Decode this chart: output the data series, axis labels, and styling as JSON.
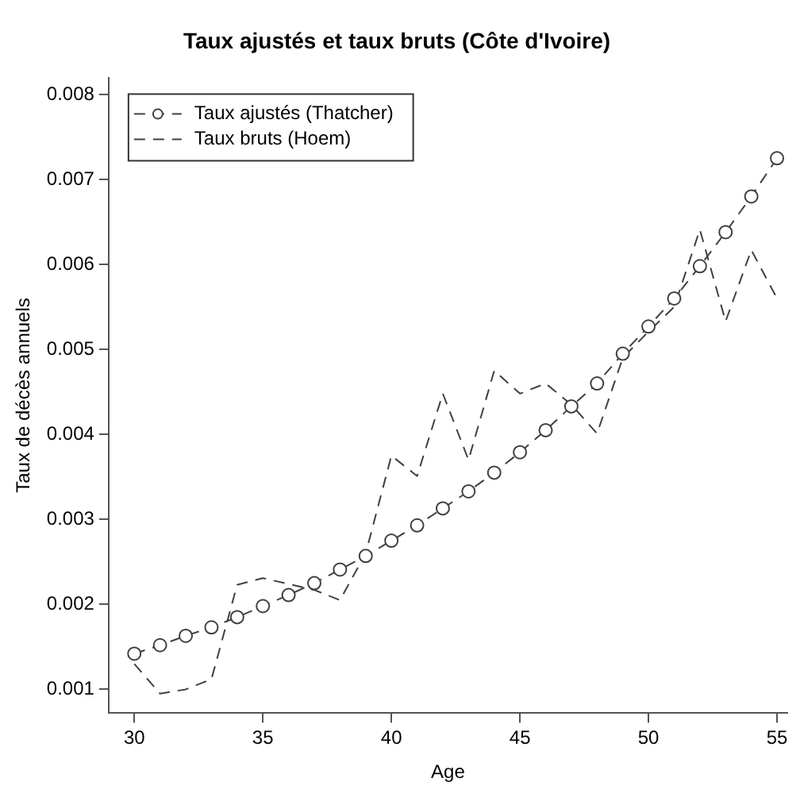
{
  "chart_data": {
    "type": "line",
    "title": "Taux ajustés et taux bruts (Côte d'Ivoire)",
    "xlabel": "Age",
    "ylabel": "Taux de décès annuels",
    "x": [
      30,
      31,
      32,
      33,
      34,
      35,
      36,
      37,
      38,
      39,
      40,
      41,
      42,
      43,
      44,
      45,
      46,
      47,
      48,
      49,
      50,
      51,
      52,
      53,
      54,
      55
    ],
    "series": [
      {
        "name": "Taux ajustés (Thatcher)",
        "color": "#404040",
        "marker": "circle",
        "line_style": "dashed",
        "values": [
          0.00142,
          0.00152,
          0.00163,
          0.00173,
          0.00185,
          0.00198,
          0.00211,
          0.00225,
          0.00241,
          0.00257,
          0.00275,
          0.00293,
          0.00313,
          0.00333,
          0.00355,
          0.00379,
          0.00405,
          0.00433,
          0.0046,
          0.00495,
          0.00527,
          0.0056,
          0.00598,
          0.00638,
          0.0068,
          0.00725
        ]
      },
      {
        "name": "Taux bruts (Hoem)",
        "color": "#404040",
        "marker": "none",
        "line_style": "dashed",
        "values": [
          0.0013,
          0.00095,
          0.001,
          0.00112,
          0.00223,
          0.00231,
          0.00224,
          0.00217,
          0.00205,
          0.0026,
          0.00375,
          0.00351,
          0.00448,
          0.0037,
          0.00475,
          0.00448,
          0.0046,
          0.00435,
          0.00401,
          0.0049,
          0.00521,
          0.0055,
          0.00641,
          0.00533,
          0.00617,
          0.0056
        ]
      }
    ],
    "xlim": [
      29,
      55.4
    ],
    "xticks": [
      30,
      35,
      40,
      45,
      50,
      55
    ],
    "ylim": [
      0.00072,
      0.0082
    ],
    "yticks": [
      0.001,
      0.002,
      0.003,
      0.004,
      0.005,
      0.006,
      0.007,
      0.008
    ],
    "grid": false,
    "legend": "top left"
  }
}
